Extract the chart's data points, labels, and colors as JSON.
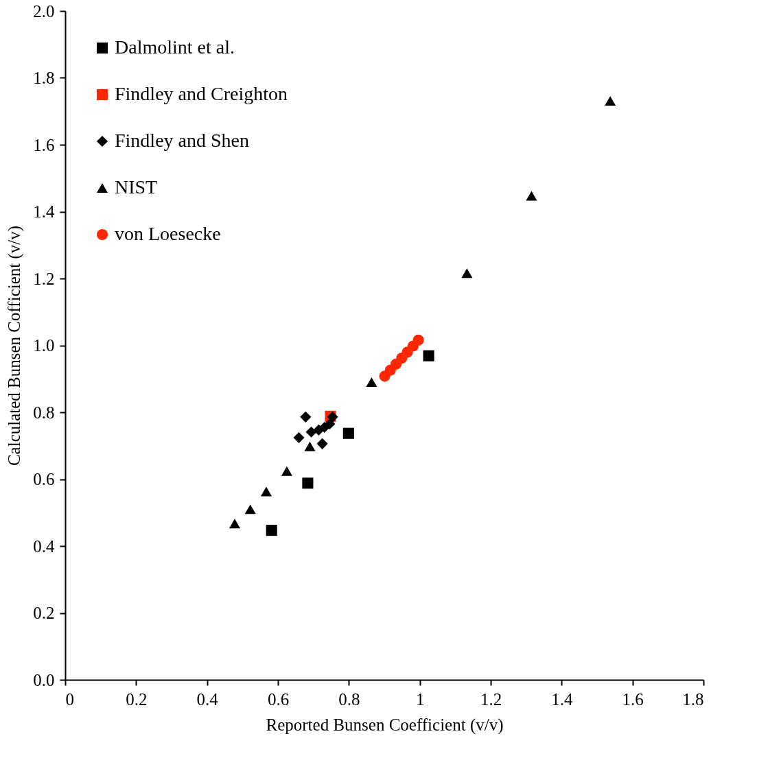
{
  "chart_data": {
    "type": "scatter",
    "xlabel": "Reported Bunsen Coefficient (v/v)",
    "ylabel": "Calculated Bunsen Cofficient (v/v)",
    "xlim": [
      0,
      1.8
    ],
    "xticks": [
      0,
      0.2,
      0.4,
      0.6,
      0.8,
      1,
      1.2,
      1.4,
      1.6,
      1.8
    ],
    "ylim": [
      0,
      2
    ],
    "yticks": [
      {
        "value": 0,
        "label": "0.0"
      },
      0.2,
      0.4,
      0.6,
      0.8,
      {
        "value": 1,
        "label": "1.0"
      },
      1.2,
      1.4,
      1.6,
      1.8,
      {
        "value": 2,
        "label": "2.0"
      }
    ],
    "grid": false,
    "legend": "top left",
    "series": [
      {
        "name": "Dalmolint et al.",
        "color": "#000000",
        "marker": "square",
        "x": [
          0.582,
          0.684,
          0.799,
          1.025
        ],
        "values": [
          0.447,
          0.588,
          0.737,
          0.969
        ]
      },
      {
        "name": "Findley and Creighton",
        "color": "#ff2600",
        "marker": "square",
        "x": [
          0.748
        ],
        "values": [
          0.788
        ]
      },
      {
        "name": "Findley and Shen",
        "color": "#000000",
        "marker": "diamond",
        "x": [
          0.678,
          0.659,
          0.694,
          0.725,
          0.715,
          0.731,
          0.746,
          0.754
        ],
        "values": [
          0.786,
          0.724,
          0.741,
          0.706,
          0.747,
          0.755,
          0.765,
          0.786
        ]
      },
      {
        "name": "NIST",
        "color": "#000000",
        "marker": "triangle",
        "x": [
          0.478,
          0.522,
          0.567,
          0.625,
          0.69,
          0.864,
          1.133,
          1.315,
          1.537
        ],
        "values": [
          0.467,
          0.51,
          0.563,
          0.624,
          0.698,
          0.89,
          1.216,
          1.447,
          1.731
        ]
      },
      {
        "name": "von Loesecke",
        "color": "#ff2600",
        "marker": "circle",
        "x": [
          0.901,
          0.917,
          0.933,
          0.949,
          0.965,
          0.981,
          0.996
        ],
        "values": [
          0.908,
          0.926,
          0.944,
          0.962,
          0.98,
          0.998,
          1.016
        ]
      }
    ]
  }
}
